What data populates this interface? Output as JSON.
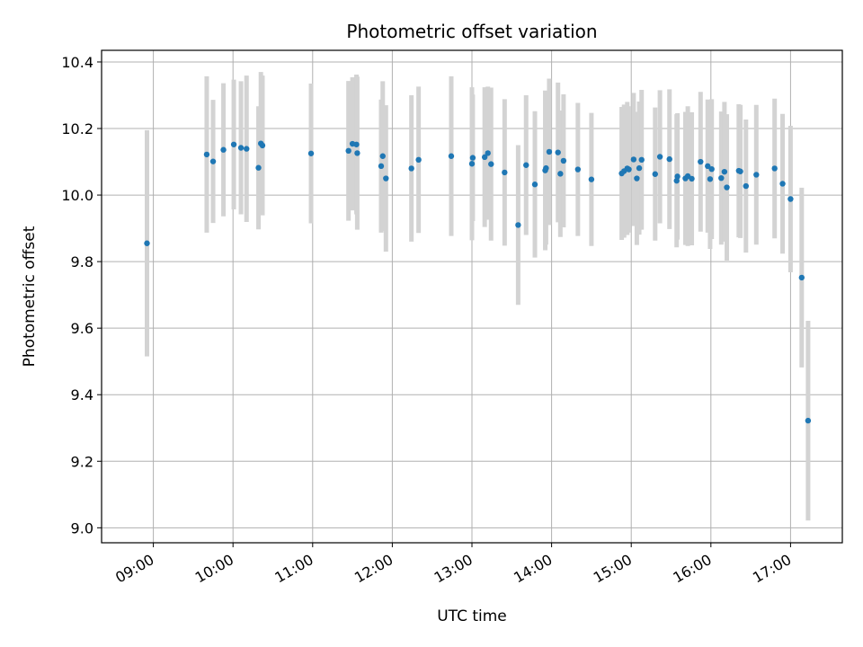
{
  "chart_data": {
    "type": "scatter",
    "title": "Photometric offset variation",
    "xlabel": "UTC time",
    "ylabel": "Photometric offset",
    "x_tick_labels": [
      "09:00",
      "10:00",
      "11:00",
      "12:00",
      "13:00",
      "14:00",
      "15:00",
      "16:00",
      "17:00"
    ],
    "x_tick_hours": [
      9,
      10,
      11,
      12,
      13,
      14,
      15,
      16,
      17
    ],
    "y_ticks": [
      9.0,
      9.2,
      9.4,
      9.6,
      9.8,
      10.0,
      10.2,
      10.4
    ],
    "y_tick_labels": [
      "9.0",
      "9.2",
      "9.4",
      "9.6",
      "9.8",
      "10.0",
      "10.2",
      "10.4"
    ],
    "xlim_hours": [
      8.35,
      17.65
    ],
    "ylim": [
      8.955,
      10.435
    ],
    "grid": true,
    "colors": {
      "points": "#1f77b4",
      "errorbars": "#d3d3d3",
      "grid": "#b0b0b0",
      "axes": "#000000"
    },
    "series": [
      {
        "x_hours": [
          8.92,
          9.67,
          9.75,
          9.88,
          10.01,
          10.1,
          10.17,
          10.32,
          10.35,
          10.37,
          10.98,
          11.45,
          11.5,
          11.55,
          11.56,
          11.86,
          11.88,
          11.92,
          12.24,
          12.33,
          12.74,
          13.0,
          13.01,
          13.16,
          13.2,
          13.24,
          13.41,
          13.58,
          13.68,
          13.79,
          13.92,
          13.93,
          13.97,
          14.08,
          14.11,
          14.15,
          14.33,
          14.5,
          14.88,
          14.91,
          14.95,
          14.97,
          15.03,
          15.07,
          15.1,
          15.13,
          15.3,
          15.36,
          15.48,
          15.57,
          15.58,
          15.68,
          15.71,
          15.76,
          15.87,
          15.96,
          15.99,
          16.01,
          16.13,
          16.17,
          16.2,
          16.35,
          16.37,
          16.44,
          16.57,
          16.8,
          16.9,
          17.0,
          17.14,
          17.22
        ],
        "y": [
          9.855,
          10.122,
          10.101,
          10.136,
          10.152,
          10.142,
          10.139,
          10.082,
          10.155,
          10.149,
          10.125,
          10.133,
          10.154,
          10.152,
          10.126,
          10.087,
          10.117,
          10.05,
          10.08,
          10.106,
          10.117,
          10.094,
          10.112,
          10.114,
          10.126,
          10.093,
          10.068,
          9.91,
          10.09,
          10.032,
          10.074,
          10.081,
          10.13,
          10.128,
          10.064,
          10.103,
          10.077,
          10.047,
          10.065,
          10.072,
          10.08,
          10.077,
          10.107,
          10.05,
          10.081,
          10.106,
          10.063,
          10.115,
          10.108,
          10.043,
          10.056,
          10.05,
          10.057,
          10.049,
          10.1,
          10.087,
          10.048,
          10.078,
          10.051,
          10.07,
          10.023,
          10.073,
          10.071,
          10.027,
          10.061,
          10.08,
          10.034,
          9.988,
          9.752,
          9.322
        ],
        "err": [
          0.34,
          0.235,
          0.185,
          0.2,
          0.195,
          0.2,
          0.22,
          0.185,
          0.215,
          0.21,
          0.21,
          0.21,
          0.2,
          0.21,
          0.23,
          0.2,
          0.225,
          0.22,
          0.22,
          0.22,
          0.24,
          0.23,
          0.19,
          0.21,
          0.2,
          0.23,
          0.22,
          0.24,
          0.21,
          0.22,
          0.24,
          0.23,
          0.22,
          0.21,
          0.19,
          0.2,
          0.2,
          0.2,
          0.2,
          0.2,
          0.2,
          0.19,
          0.2,
          0.2,
          0.2,
          0.21,
          0.2,
          0.2,
          0.21,
          0.2,
          0.19,
          0.2,
          0.21,
          0.2,
          0.21,
          0.2,
          0.21,
          0.21,
          0.2,
          0.21,
          0.22,
          0.2,
          0.2,
          0.2,
          0.21,
          0.21,
          0.21,
          0.22,
          0.27,
          0.3
        ]
      }
    ]
  }
}
